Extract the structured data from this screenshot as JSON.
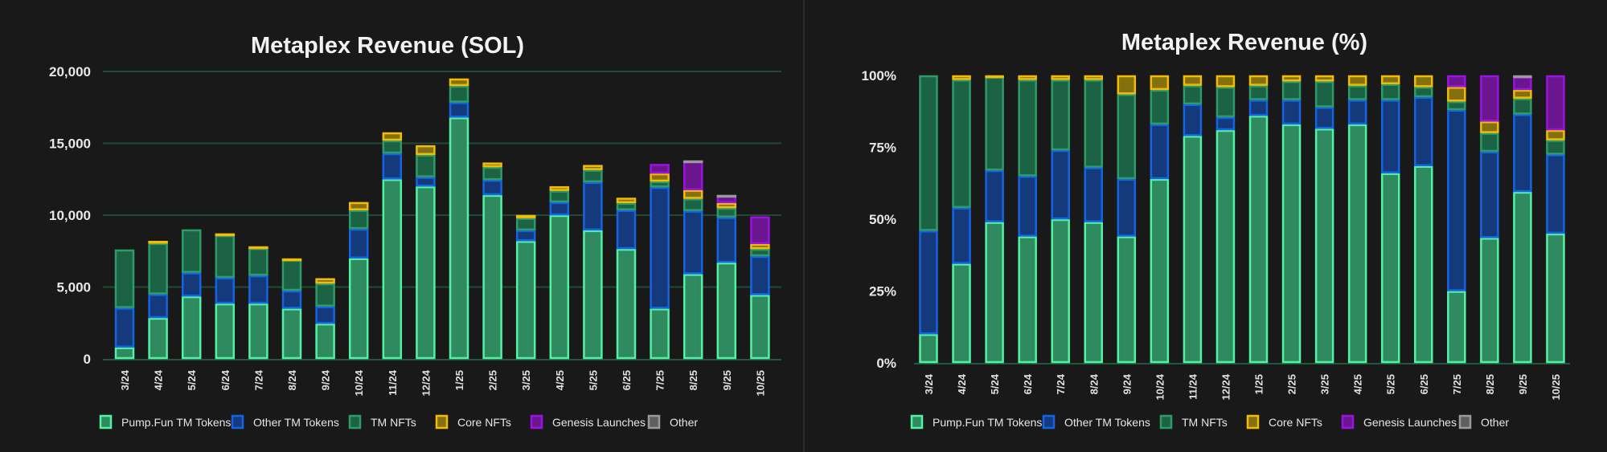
{
  "colors": {
    "Pump.Fun TM Tokens": {
      "fill": "#2f8a5f",
      "stroke": "#52f2a4"
    },
    "Other TM Tokens": {
      "fill": "#143a7c",
      "stroke": "#1663e6"
    },
    "TM NFTs": {
      "fill": "#1c6244",
      "stroke": "#2c9c68"
    },
    "Core NFTs": {
      "fill": "#84700f",
      "stroke": "#f2bb05"
    },
    "Genesis Launches": {
      "fill": "#6b158f",
      "stroke": "#9b12e4"
    },
    "Other": {
      "fill": "#5f5f5f",
      "stroke": "#9a9a9a"
    }
  },
  "chart_data": [
    {
      "type": "bar",
      "stacked": true,
      "title": "Metaplex Revenue (SOL)",
      "xlabel": "",
      "ylabel": "",
      "ylim": [
        0,
        20000
      ],
      "yticks": [
        0,
        5000,
        10000,
        15000,
        20000
      ],
      "ytick_labels": [
        "0",
        "5,000",
        "10,000",
        "15,000",
        "20,000"
      ],
      "grid": true,
      "legend_position": "bottom",
      "categories": [
        "3/24",
        "4/24",
        "5/24",
        "6/24",
        "7/24",
        "8/24",
        "9/24",
        "10/24",
        "11/24",
        "12/24",
        "1/25",
        "2/25",
        "3/25",
        "4/25",
        "5/25",
        "6/25",
        "7/25",
        "8/25",
        "9/25",
        "10/25"
      ],
      "series": [
        {
          "name": "Pump.Fun TM Tokens",
          "values": [
            800,
            2850,
            4350,
            3850,
            3850,
            3500,
            2450,
            7000,
            12500,
            12000,
            16800,
            11400,
            8200,
            10000,
            8950,
            7650,
            3500,
            5900,
            6700,
            4450
          ]
        },
        {
          "name": "Other TM Tokens",
          "values": [
            2750,
            1650,
            1650,
            1800,
            1950,
            1250,
            1200,
            2050,
            1800,
            650,
            1050,
            1050,
            750,
            900,
            3350,
            2700,
            8450,
            4400,
            3150,
            2700
          ]
        },
        {
          "name": "TM NFTs",
          "values": [
            4050,
            3550,
            3000,
            2950,
            1900,
            2150,
            1600,
            1300,
            900,
            1550,
            1150,
            900,
            850,
            800,
            850,
            500,
            400,
            850,
            650,
            500
          ]
        },
        {
          "name": "Core NFTs",
          "values": [
            0,
            150,
            0,
            120,
            120,
            80,
            350,
            550,
            550,
            650,
            500,
            300,
            200,
            300,
            330,
            350,
            550,
            600,
            350,
            350
          ]
        },
        {
          "name": "Genesis Launches",
          "values": [
            0,
            0,
            0,
            0,
            0,
            0,
            0,
            0,
            0,
            0,
            0,
            0,
            0,
            0,
            0,
            0,
            650,
            2000,
            500,
            1900
          ]
        },
        {
          "name": "Other",
          "values": [
            0,
            0,
            0,
            0,
            0,
            0,
            0,
            0,
            0,
            0,
            0,
            0,
            0,
            0,
            0,
            0,
            0,
            50,
            50,
            0
          ]
        }
      ]
    },
    {
      "type": "bar",
      "stacked": true,
      "title": "Metaplex Revenue (%)",
      "xlabel": "",
      "ylabel": "",
      "ylim": [
        0,
        100
      ],
      "yticks": [
        0,
        25,
        50,
        75,
        100
      ],
      "ytick_labels": [
        "0%",
        "25%",
        "50%",
        "75%",
        "100%"
      ],
      "grid": false,
      "legend_position": "bottom",
      "categories": [
        "3/24",
        "4/24",
        "5/24",
        "6/24",
        "7/24",
        "8/24",
        "9/24",
        "10/24",
        "11/24",
        "12/24",
        "1/25",
        "2/25",
        "3/25",
        "4/25",
        "5/25",
        "6/25",
        "7/25",
        "8/25",
        "9/25",
        "10/25"
      ],
      "series": [
        {
          "name": "Pump.Fun TM Tokens",
          "values": [
            10,
            34.5,
            49,
            44,
            50,
            49,
            44,
            64,
            79,
            81,
            86,
            83,
            81.5,
            83,
            66,
            68.5,
            25,
            43.5,
            59.5,
            45
          ]
        },
        {
          "name": "Other TM Tokens",
          "values": [
            36,
            19.5,
            18,
            21,
            24,
            19,
            20,
            19,
            11,
            4.5,
            5.5,
            8.5,
            7.5,
            8.5,
            25.5,
            24,
            63,
            30,
            27,
            27.5
          ]
        },
        {
          "name": "TM NFTs",
          "values": [
            54,
            44.5,
            32.5,
            33.5,
            24.5,
            30.5,
            29.5,
            12,
            6.5,
            10.5,
            5,
            6.5,
            9,
            5,
            5.5,
            3.5,
            3,
            6.5,
            5.5,
            5
          ]
        },
        {
          "name": "Core NFTs",
          "values": [
            0,
            1.5,
            0.5,
            1.5,
            1.5,
            1.5,
            6.5,
            5,
            3.5,
            4,
            3.5,
            2,
            2,
            3.5,
            3,
            4,
            5,
            4,
            3,
            3.5
          ]
        },
        {
          "name": "Genesis Launches",
          "values": [
            0,
            0,
            0,
            0,
            0,
            0,
            0,
            0,
            0,
            0,
            0,
            0,
            0,
            0,
            0,
            0,
            4,
            16,
            4.5,
            19
          ]
        },
        {
          "name": "Other",
          "values": [
            0,
            0,
            0,
            0,
            0,
            0,
            0,
            0,
            0,
            0,
            0,
            0,
            0,
            0,
            0,
            0,
            0,
            0,
            0.5,
            0
          ]
        }
      ]
    }
  ]
}
